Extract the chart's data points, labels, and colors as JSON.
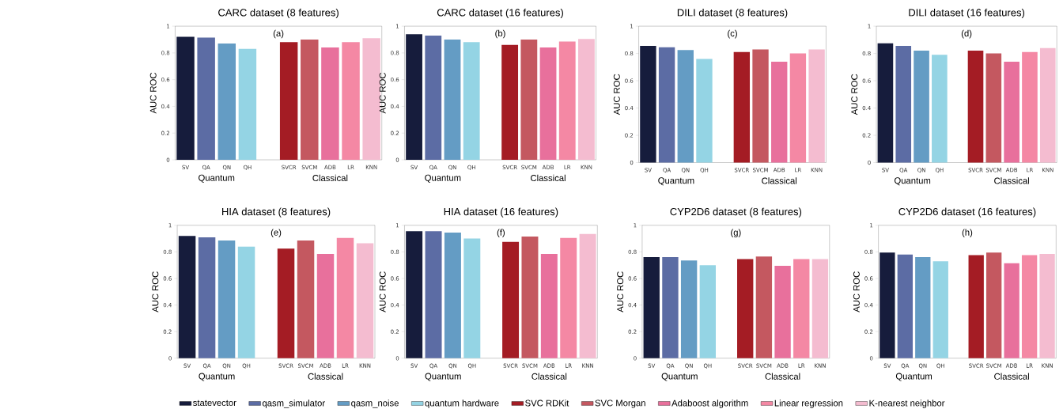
{
  "chart_data": [
    {
      "type": "bar",
      "title": "CARC dataset (8 features)",
      "ylabel": "AUC ROC",
      "categories": [
        "SV",
        "QA",
        "QN",
        "QH",
        null,
        "SVCR",
        "SVCM",
        "ADB",
        "LR",
        "KNN"
      ],
      "ylim": [
        0,
        1
      ],
      "yticks": [
        0,
        0.2,
        0.4,
        0.6,
        0.8,
        1
      ],
      "annotations": [
        "(a)",
        "Quantum",
        "Classical"
      ],
      "series": [
        {
          "color": "#161c3c",
          "values": [
            0.92,
            null,
            null,
            null,
            null,
            null,
            null,
            null,
            null,
            null
          ]
        },
        {
          "color": "#5c6ca4",
          "values": [
            null,
            0.915,
            null,
            null,
            null,
            null,
            null,
            null,
            null,
            null
          ]
        },
        {
          "color": "#649cc4",
          "values": [
            null,
            null,
            0.87,
            null,
            null,
            null,
            null,
            null,
            null,
            null
          ]
        },
        {
          "color": "#94d4e4",
          "values": [
            null,
            null,
            null,
            0.83,
            null,
            null,
            null,
            null,
            null,
            null
          ]
        },
        {
          "color": "#a41c24",
          "values": [
            null,
            null,
            null,
            null,
            null,
            0.88,
            null,
            null,
            null,
            null
          ]
        },
        {
          "color": "#c45860",
          "values": [
            null,
            null,
            null,
            null,
            null,
            null,
            0.9,
            null,
            null,
            null
          ]
        },
        {
          "color": "#e8709c",
          "values": [
            null,
            null,
            null,
            null,
            null,
            null,
            null,
            0.84,
            null,
            null
          ]
        },
        {
          "color": "#f488a4",
          "values": [
            null,
            null,
            null,
            null,
            null,
            null,
            null,
            null,
            0.88,
            null
          ]
        },
        {
          "color": "#f4bcd0",
          "values": [
            null,
            null,
            null,
            null,
            null,
            null,
            null,
            null,
            null,
            0.91
          ]
        }
      ]
    },
    {
      "type": "bar",
      "title": "CARC dataset (16 features)",
      "ylabel": "AUC ROC",
      "categories": [
        "SV",
        "QA",
        "QN",
        "QH",
        null,
        "SVCR",
        "SVCM",
        "ADB",
        "LR",
        "KNN"
      ],
      "ylim": [
        0,
        1
      ],
      "yticks": [
        0,
        0.2,
        0.4,
        0.6,
        0.8,
        1
      ],
      "annotations": [
        "(b)",
        "Quantum",
        "Classical"
      ],
      "series": [
        {
          "color": "#161c3c",
          "values": [
            0.94,
            null,
            null,
            null,
            null,
            null,
            null,
            null,
            null,
            null
          ]
        },
        {
          "color": "#5c6ca4",
          "values": [
            null,
            0.93,
            null,
            null,
            null,
            null,
            null,
            null,
            null,
            null
          ]
        },
        {
          "color": "#649cc4",
          "values": [
            null,
            null,
            0.9,
            null,
            null,
            null,
            null,
            null,
            null,
            null
          ]
        },
        {
          "color": "#94d4e4",
          "values": [
            null,
            null,
            null,
            0.88,
            null,
            null,
            null,
            null,
            null,
            null
          ]
        },
        {
          "color": "#a41c24",
          "values": [
            null,
            null,
            null,
            null,
            null,
            0.86,
            null,
            null,
            null,
            null
          ]
        },
        {
          "color": "#c45860",
          "values": [
            null,
            null,
            null,
            null,
            null,
            null,
            0.9,
            null,
            null,
            null
          ]
        },
        {
          "color": "#e8709c",
          "values": [
            null,
            null,
            null,
            null,
            null,
            null,
            null,
            0.84,
            null,
            null
          ]
        },
        {
          "color": "#f488a4",
          "values": [
            null,
            null,
            null,
            null,
            null,
            null,
            null,
            null,
            0.885,
            null
          ]
        },
        {
          "color": "#f4bcd0",
          "values": [
            null,
            null,
            null,
            null,
            null,
            null,
            null,
            null,
            null,
            0.905
          ]
        }
      ]
    },
    {
      "type": "bar",
      "title": "DILI dataset (8 features)",
      "ylabel": "AUC ROC",
      "categories": [
        "SV",
        "QA",
        "QN",
        "QH",
        null,
        "SVCR",
        "SVCM",
        "ADB",
        "LR",
        "KNN"
      ],
      "ylim": [
        0,
        1
      ],
      "yticks": [
        0,
        0.2,
        0.4,
        0.6,
        0.8,
        1
      ],
      "annotations": [
        "(c)",
        "Quantum",
        "Classical"
      ],
      "series": [
        {
          "color": "#161c3c",
          "values": [
            0.855,
            null,
            null,
            null,
            null,
            null,
            null,
            null,
            null,
            null
          ]
        },
        {
          "color": "#5c6ca4",
          "values": [
            null,
            0.845,
            null,
            null,
            null,
            null,
            null,
            null,
            null,
            null
          ]
        },
        {
          "color": "#649cc4",
          "values": [
            null,
            null,
            0.825,
            null,
            null,
            null,
            null,
            null,
            null,
            null
          ]
        },
        {
          "color": "#94d4e4",
          "values": [
            null,
            null,
            null,
            0.76,
            null,
            null,
            null,
            null,
            null,
            null
          ]
        },
        {
          "color": "#a41c24",
          "values": [
            null,
            null,
            null,
            null,
            null,
            0.81,
            null,
            null,
            null,
            null
          ]
        },
        {
          "color": "#c45860",
          "values": [
            null,
            null,
            null,
            null,
            null,
            null,
            0.83,
            null,
            null,
            null
          ]
        },
        {
          "color": "#e8709c",
          "values": [
            null,
            null,
            null,
            null,
            null,
            null,
            null,
            0.74,
            null,
            null
          ]
        },
        {
          "color": "#f488a4",
          "values": [
            null,
            null,
            null,
            null,
            null,
            null,
            null,
            null,
            0.8,
            null
          ]
        },
        {
          "color": "#f4bcd0",
          "values": [
            null,
            null,
            null,
            null,
            null,
            null,
            null,
            null,
            null,
            0.83
          ]
        }
      ]
    },
    {
      "type": "bar",
      "title": "DILI dataset (16 features)",
      "ylabel": "AUC ROC",
      "categories": [
        "SV",
        "QA",
        "QN",
        "QH",
        null,
        "SVCR",
        "SVCM",
        "ADB",
        "LR",
        "KNN"
      ],
      "ylim": [
        0,
        1
      ],
      "yticks": [
        0,
        0.2,
        0.4,
        0.6,
        0.8,
        1
      ],
      "annotations": [
        "(d)",
        "Quantum",
        "Classical"
      ],
      "series": [
        {
          "color": "#161c3c",
          "values": [
            0.875,
            null,
            null,
            null,
            null,
            null,
            null,
            null,
            null,
            null
          ]
        },
        {
          "color": "#5c6ca4",
          "values": [
            null,
            0.855,
            null,
            null,
            null,
            null,
            null,
            null,
            null,
            null
          ]
        },
        {
          "color": "#649cc4",
          "values": [
            null,
            null,
            0.82,
            null,
            null,
            null,
            null,
            null,
            null,
            null
          ]
        },
        {
          "color": "#94d4e4",
          "values": [
            null,
            null,
            null,
            0.79,
            null,
            null,
            null,
            null,
            null,
            null
          ]
        },
        {
          "color": "#a41c24",
          "values": [
            null,
            null,
            null,
            null,
            null,
            0.82,
            null,
            null,
            null,
            null
          ]
        },
        {
          "color": "#c45860",
          "values": [
            null,
            null,
            null,
            null,
            null,
            null,
            0.8,
            null,
            null,
            null
          ]
        },
        {
          "color": "#e8709c",
          "values": [
            null,
            null,
            null,
            null,
            null,
            null,
            null,
            0.74,
            null,
            null
          ]
        },
        {
          "color": "#f488a4",
          "values": [
            null,
            null,
            null,
            null,
            null,
            null,
            null,
            null,
            0.81,
            null
          ]
        },
        {
          "color": "#f4bcd0",
          "values": [
            null,
            null,
            null,
            null,
            null,
            null,
            null,
            null,
            null,
            0.84
          ]
        }
      ]
    },
    {
      "type": "bar",
      "title": "HIA dataset (8 features)",
      "ylabel": "AUC ROC",
      "categories": [
        "SV",
        "QA",
        "QN",
        "QH",
        null,
        "SVCR",
        "SVCM",
        "ADB",
        "LR",
        "KNN"
      ],
      "ylim": [
        0,
        1
      ],
      "yticks": [
        0,
        0.2,
        0.4,
        0.6,
        0.8,
        1
      ],
      "annotations": [
        "(e)",
        "Quantum",
        "Classical"
      ],
      "legend": "bottom",
      "series": [
        {
          "name": "statevector",
          "color": "#161c3c",
          "values": [
            0.92,
            null,
            null,
            null,
            null,
            null,
            null,
            null,
            null,
            null
          ]
        },
        {
          "name": "qasm_simulator",
          "color": "#5c6ca4",
          "values": [
            null,
            0.91,
            null,
            null,
            null,
            null,
            null,
            null,
            null,
            null
          ]
        },
        {
          "name": "qasm_noise",
          "color": "#649cc4",
          "values": [
            null,
            null,
            0.885,
            null,
            null,
            null,
            null,
            null,
            null,
            null
          ]
        },
        {
          "name": "quantum hardware",
          "color": "#94d4e4",
          "values": [
            null,
            null,
            null,
            0.84,
            null,
            null,
            null,
            null,
            null,
            null
          ]
        },
        {
          "name": "SVC RDKit",
          "color": "#a41c24",
          "values": [
            null,
            null,
            null,
            null,
            null,
            0.825,
            null,
            null,
            null,
            null
          ]
        },
        {
          "name": "SVC Morgan",
          "color": "#c45860",
          "values": [
            null,
            null,
            null,
            null,
            null,
            null,
            0.885,
            null,
            null,
            null
          ]
        },
        {
          "name": "Adaboost algorithm",
          "color": "#e8709c",
          "values": [
            null,
            null,
            null,
            null,
            null,
            null,
            null,
            0.785,
            null,
            null
          ]
        },
        {
          "name": "Linear regression",
          "color": "#f488a4",
          "values": [
            null,
            null,
            null,
            null,
            null,
            null,
            null,
            null,
            0.905,
            null
          ]
        },
        {
          "name": "K-nearest neighbor",
          "color": "#f4bcd0",
          "values": [
            null,
            null,
            null,
            null,
            null,
            null,
            null,
            null,
            null,
            0.865
          ]
        }
      ]
    },
    {
      "type": "bar",
      "title": "HIA dataset (16 features)",
      "ylabel": "AUC ROC",
      "categories": [
        "SV",
        "QA",
        "QN",
        "QH",
        null,
        "SVCR",
        "SVCM",
        "ADB",
        "LR",
        "KNN"
      ],
      "ylim": [
        0,
        1
      ],
      "yticks": [
        0,
        0.2,
        0.4,
        0.6,
        0.8,
        1
      ],
      "annotations": [
        "(f)",
        "Quantum",
        "Classical"
      ],
      "series": [
        {
          "color": "#161c3c",
          "values": [
            0.955,
            null,
            null,
            null,
            null,
            null,
            null,
            null,
            null,
            null
          ]
        },
        {
          "color": "#5c6ca4",
          "values": [
            null,
            0.955,
            null,
            null,
            null,
            null,
            null,
            null,
            null,
            null
          ]
        },
        {
          "color": "#649cc4",
          "values": [
            null,
            null,
            0.945,
            null,
            null,
            null,
            null,
            null,
            null,
            null
          ]
        },
        {
          "color": "#94d4e4",
          "values": [
            null,
            null,
            null,
            0.9,
            null,
            null,
            null,
            null,
            null,
            null
          ]
        },
        {
          "color": "#a41c24",
          "values": [
            null,
            null,
            null,
            null,
            null,
            0.875,
            null,
            null,
            null,
            null
          ]
        },
        {
          "color": "#c45860",
          "values": [
            null,
            null,
            null,
            null,
            null,
            null,
            0.915,
            null,
            null,
            null
          ]
        },
        {
          "color": "#e8709c",
          "values": [
            null,
            null,
            null,
            null,
            null,
            null,
            null,
            0.785,
            null,
            null
          ]
        },
        {
          "color": "#f488a4",
          "values": [
            null,
            null,
            null,
            null,
            null,
            null,
            null,
            null,
            0.905,
            null
          ]
        },
        {
          "color": "#f4bcd0",
          "values": [
            null,
            null,
            null,
            null,
            null,
            null,
            null,
            null,
            null,
            0.935
          ]
        }
      ]
    },
    {
      "type": "bar",
      "title": "CYP2D6 dataset (8 features)",
      "ylabel": "AUC ROC",
      "categories": [
        "SV",
        "QA",
        "QN",
        "QH",
        null,
        "SVCR",
        "SVCM",
        "ADB",
        "LR",
        "KNN"
      ],
      "ylim": [
        0,
        1
      ],
      "yticks": [
        0,
        0.2,
        0.4,
        0.6,
        0.8,
        1
      ],
      "annotations": [
        "(g)",
        "Quantum",
        "Classical"
      ],
      "series": [
        {
          "color": "#161c3c",
          "values": [
            0.76,
            null,
            null,
            null,
            null,
            null,
            null,
            null,
            null,
            null
          ]
        },
        {
          "color": "#5c6ca4",
          "values": [
            null,
            0.76,
            null,
            null,
            null,
            null,
            null,
            null,
            null,
            null
          ]
        },
        {
          "color": "#649cc4",
          "values": [
            null,
            null,
            0.735,
            null,
            null,
            null,
            null,
            null,
            null,
            null
          ]
        },
        {
          "color": "#94d4e4",
          "values": [
            null,
            null,
            null,
            0.7,
            null,
            null,
            null,
            null,
            null,
            null
          ]
        },
        {
          "color": "#a41c24",
          "values": [
            null,
            null,
            null,
            null,
            null,
            0.745,
            null,
            null,
            null,
            null
          ]
        },
        {
          "color": "#c45860",
          "values": [
            null,
            null,
            null,
            null,
            null,
            null,
            0.765,
            null,
            null,
            null
          ]
        },
        {
          "color": "#e8709c",
          "values": [
            null,
            null,
            null,
            null,
            null,
            null,
            null,
            0.695,
            null,
            null
          ]
        },
        {
          "color": "#f488a4",
          "values": [
            null,
            null,
            null,
            null,
            null,
            null,
            null,
            null,
            0.745,
            null
          ]
        },
        {
          "color": "#f4bcd0",
          "values": [
            null,
            null,
            null,
            null,
            null,
            null,
            null,
            null,
            null,
            0.745
          ]
        }
      ]
    },
    {
      "type": "bar",
      "title": "CYP2D6 dataset (16 features)",
      "ylabel": "AUC ROC",
      "categories": [
        "SV",
        "QA",
        "QN",
        "QH",
        null,
        "SVCR",
        "SVCM",
        "ADB",
        "LR",
        "KNN"
      ],
      "ylim": [
        0,
        1
      ],
      "yticks": [
        0,
        0.2,
        0.4,
        0.6,
        0.8,
        1
      ],
      "annotations": [
        "(h)",
        "Quantum",
        "Classical"
      ],
      "series": [
        {
          "color": "#161c3c",
          "values": [
            0.795,
            null,
            null,
            null,
            null,
            null,
            null,
            null,
            null,
            null
          ]
        },
        {
          "color": "#5c6ca4",
          "values": [
            null,
            0.78,
            null,
            null,
            null,
            null,
            null,
            null,
            null,
            null
          ]
        },
        {
          "color": "#649cc4",
          "values": [
            null,
            null,
            0.76,
            null,
            null,
            null,
            null,
            null,
            null,
            null
          ]
        },
        {
          "color": "#94d4e4",
          "values": [
            null,
            null,
            null,
            0.73,
            null,
            null,
            null,
            null,
            null,
            null
          ]
        },
        {
          "color": "#a41c24",
          "values": [
            null,
            null,
            null,
            null,
            null,
            0.775,
            null,
            null,
            null,
            null
          ]
        },
        {
          "color": "#c45860",
          "values": [
            null,
            null,
            null,
            null,
            null,
            null,
            0.795,
            null,
            null,
            null
          ]
        },
        {
          "color": "#e8709c",
          "values": [
            null,
            null,
            null,
            null,
            null,
            null,
            null,
            0.715,
            null,
            null
          ]
        },
        {
          "color": "#f488a4",
          "values": [
            null,
            null,
            null,
            null,
            null,
            null,
            null,
            null,
            0.775,
            null
          ]
        },
        {
          "color": "#f4bcd0",
          "values": [
            null,
            null,
            null,
            null,
            null,
            null,
            null,
            null,
            null,
            0.785
          ]
        }
      ]
    }
  ]
}
